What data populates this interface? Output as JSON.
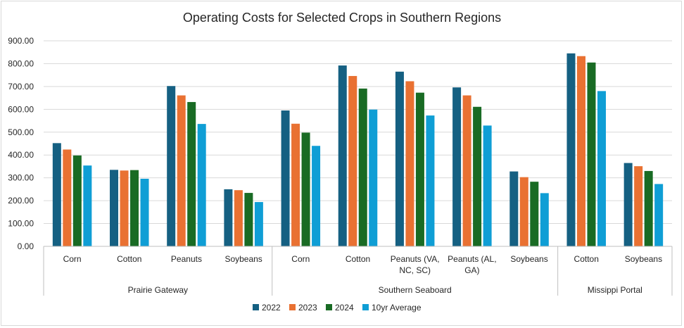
{
  "chart_data": {
    "type": "bar",
    "title": "Operating Costs for Selected Crops in Southern Regions",
    "xlabel": "",
    "ylabel": "",
    "ylim": [
      0,
      900
    ],
    "yticks": [
      "0.00",
      "100.00",
      "200.00",
      "300.00",
      "400.00",
      "500.00",
      "600.00",
      "700.00",
      "800.00",
      "900.00"
    ],
    "grid": true,
    "legend_position": "bottom",
    "groups": [
      {
        "name": "Prairie Gateway",
        "categories": [
          [
            "Corn"
          ],
          [
            "Cotton"
          ],
          [
            "Peanuts"
          ],
          [
            "Soybeans"
          ]
        ]
      },
      {
        "name": "Southern Seaboard",
        "categories": [
          [
            "Corn"
          ],
          [
            "Cotton"
          ],
          [
            "Peanuts (VA,",
            "NC, SC)"
          ],
          [
            "Peanuts (AL,",
            "GA)"
          ],
          [
            "Soybeans"
          ]
        ]
      },
      {
        "name": "Missippi Portal",
        "categories": [
          [
            "Cotton"
          ],
          [
            "Soybeans"
          ]
        ]
      }
    ],
    "series": [
      {
        "name": "2022",
        "color": "#156082",
        "values": [
          452,
          335,
          702,
          250,
          595,
          792,
          765,
          696,
          328,
          845,
          365
        ]
      },
      {
        "name": "2023",
        "color": "#e97132",
        "values": [
          424,
          332,
          661,
          246,
          537,
          746,
          723,
          661,
          303,
          833,
          351
        ]
      },
      {
        "name": "2024",
        "color": "#196b24",
        "values": [
          398,
          334,
          632,
          234,
          498,
          691,
          673,
          611,
          283,
          805,
          330
        ]
      },
      {
        "name": "10yr Average",
        "color": "#0f9ed5",
        "values": [
          354,
          296,
          536,
          194,
          440,
          599,
          573,
          529,
          233,
          680,
          273
        ]
      }
    ]
  }
}
